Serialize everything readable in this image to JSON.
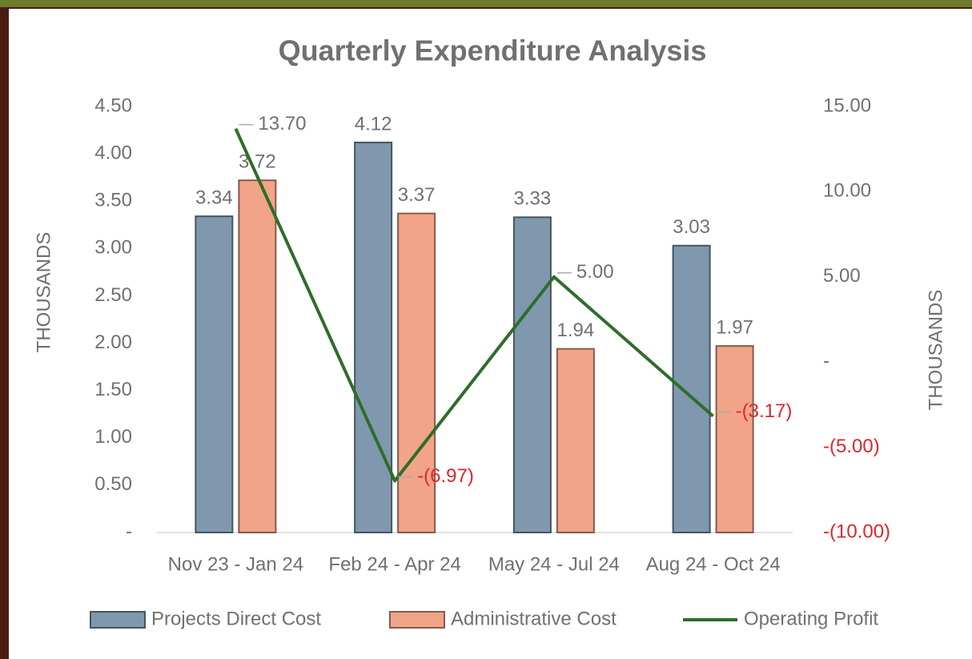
{
  "chart_data": {
    "type": "bar_line",
    "title": "Quarterly Expenditure Analysis",
    "y_label": "THOUSANDS",
    "y2_label": "THOUSANDS",
    "categories": [
      "Nov 23 - Jan 24",
      "Feb 24 - Apr 24",
      "May 24 - Jul 24",
      "Aug 24 - Oct 24"
    ],
    "series": [
      {
        "name": "Projects Direct Cost",
        "type": "bar",
        "color": "#7f98ae",
        "values": [
          3.34,
          4.12,
          3.33,
          3.03
        ]
      },
      {
        "name": "Administrative Cost",
        "type": "bar",
        "color": "#f1a488",
        "values": [
          3.72,
          3.37,
          1.94,
          1.97
        ]
      },
      {
        "name": "Operating Profit",
        "type": "line",
        "axis": "y2",
        "color": "#2f6d2a",
        "values": [
          13.7,
          -6.97,
          5.0,
          -3.17
        ],
        "value_labels": [
          "13.70",
          "(6.97)",
          "5.00",
          "(3.17)"
        ]
      }
    ],
    "ylim": [
      0,
      4.5
    ],
    "yticks": [
      {
        "value": 0,
        "label": "-"
      },
      {
        "value": 0.5,
        "label": "0.50"
      },
      {
        "value": 1,
        "label": "1.00"
      },
      {
        "value": 1.5,
        "label": "1.50"
      },
      {
        "value": 2,
        "label": "2.00"
      },
      {
        "value": 2.5,
        "label": "2.50"
      },
      {
        "value": 3,
        "label": "3.00"
      },
      {
        "value": 3.5,
        "label": "3.50"
      },
      {
        "value": 4,
        "label": "4.00"
      },
      {
        "value": 4.5,
        "label": "4.50"
      }
    ],
    "y2lim": [
      -10,
      15
    ],
    "y2ticks": [
      {
        "value": -10,
        "label": "(10.00)"
      },
      {
        "value": -5,
        "label": "(5.00)"
      },
      {
        "value": 0,
        "label": "-"
      },
      {
        "value": 5,
        "label": "5.00"
      },
      {
        "value": 10,
        "label": "10.00"
      },
      {
        "value": 15,
        "label": "15.00"
      }
    ],
    "negative_color": "#e0262b",
    "legend": "bottom"
  }
}
